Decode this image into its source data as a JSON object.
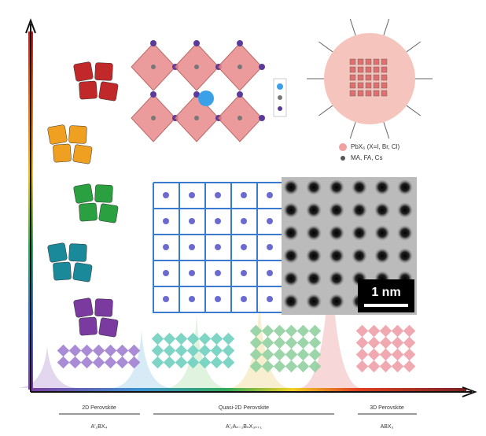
{
  "legend": [
    "PbX₆ (X=I, Br, Cl)",
    "MA, FA, Cs"
  ],
  "scale_bar": "1 nm",
  "phases": [
    {
      "name": "2D Perovskite",
      "formula": "A'₂BX₄"
    },
    {
      "name": "Quasi-2D Perovskite",
      "formula": "A'₂Aₙ₋₁BₙX₃ₙ₊₁"
    },
    {
      "name": "3D Perovskite",
      "formula": "ABX₃"
    }
  ]
}
